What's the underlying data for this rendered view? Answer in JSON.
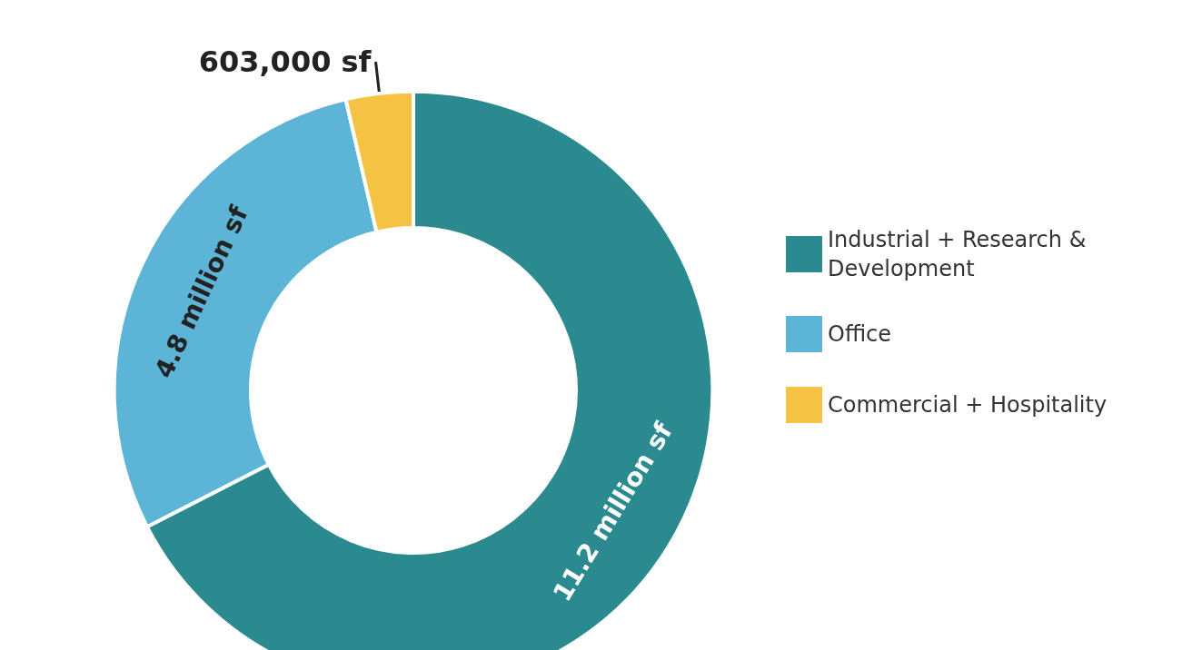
{
  "chart_data": {
    "type": "donut",
    "categories": [
      "Industrial + Research & Development",
      "Office",
      "Commercial + Hospitality"
    ],
    "values": [
      11200000,
      4800000,
      603000
    ],
    "colors": [
      "#2a8a8f",
      "#5cb5d6",
      "#f6c244"
    ],
    "value_labels": [
      "11.2 million sf",
      "4.8 million sf",
      "603,000 sf"
    ],
    "legend": "right"
  }
}
